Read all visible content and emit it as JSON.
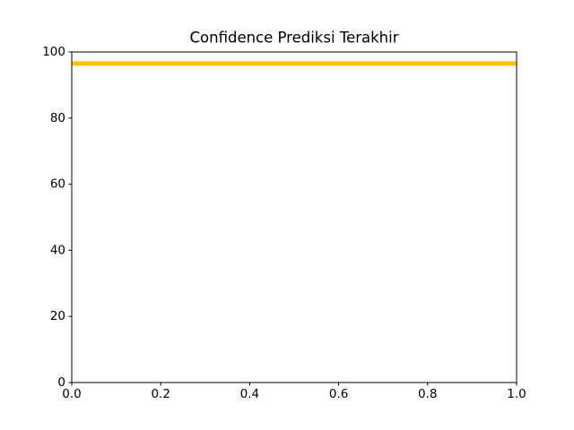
{
  "chart_data": {
    "type": "line",
    "title": "Confidence Prediksi Terakhir",
    "x": [
      0,
      1
    ],
    "values": [
      96.5,
      96.5
    ],
    "color": "#ffc107",
    "xlim": [
      0,
      1
    ],
    "xticks": [
      {
        "value": 0,
        "label": "0.0"
      },
      {
        "value": 0.2,
        "label": "0.2"
      },
      {
        "value": 0.4,
        "label": "0.4"
      },
      {
        "value": 0.6,
        "label": "0.6"
      },
      {
        "value": 0.8,
        "label": "0.8"
      },
      {
        "value": 1,
        "label": "1.0"
      }
    ],
    "ylim": [
      0,
      100
    ],
    "yticks": [
      0,
      20,
      40,
      60,
      80,
      100
    ]
  }
}
